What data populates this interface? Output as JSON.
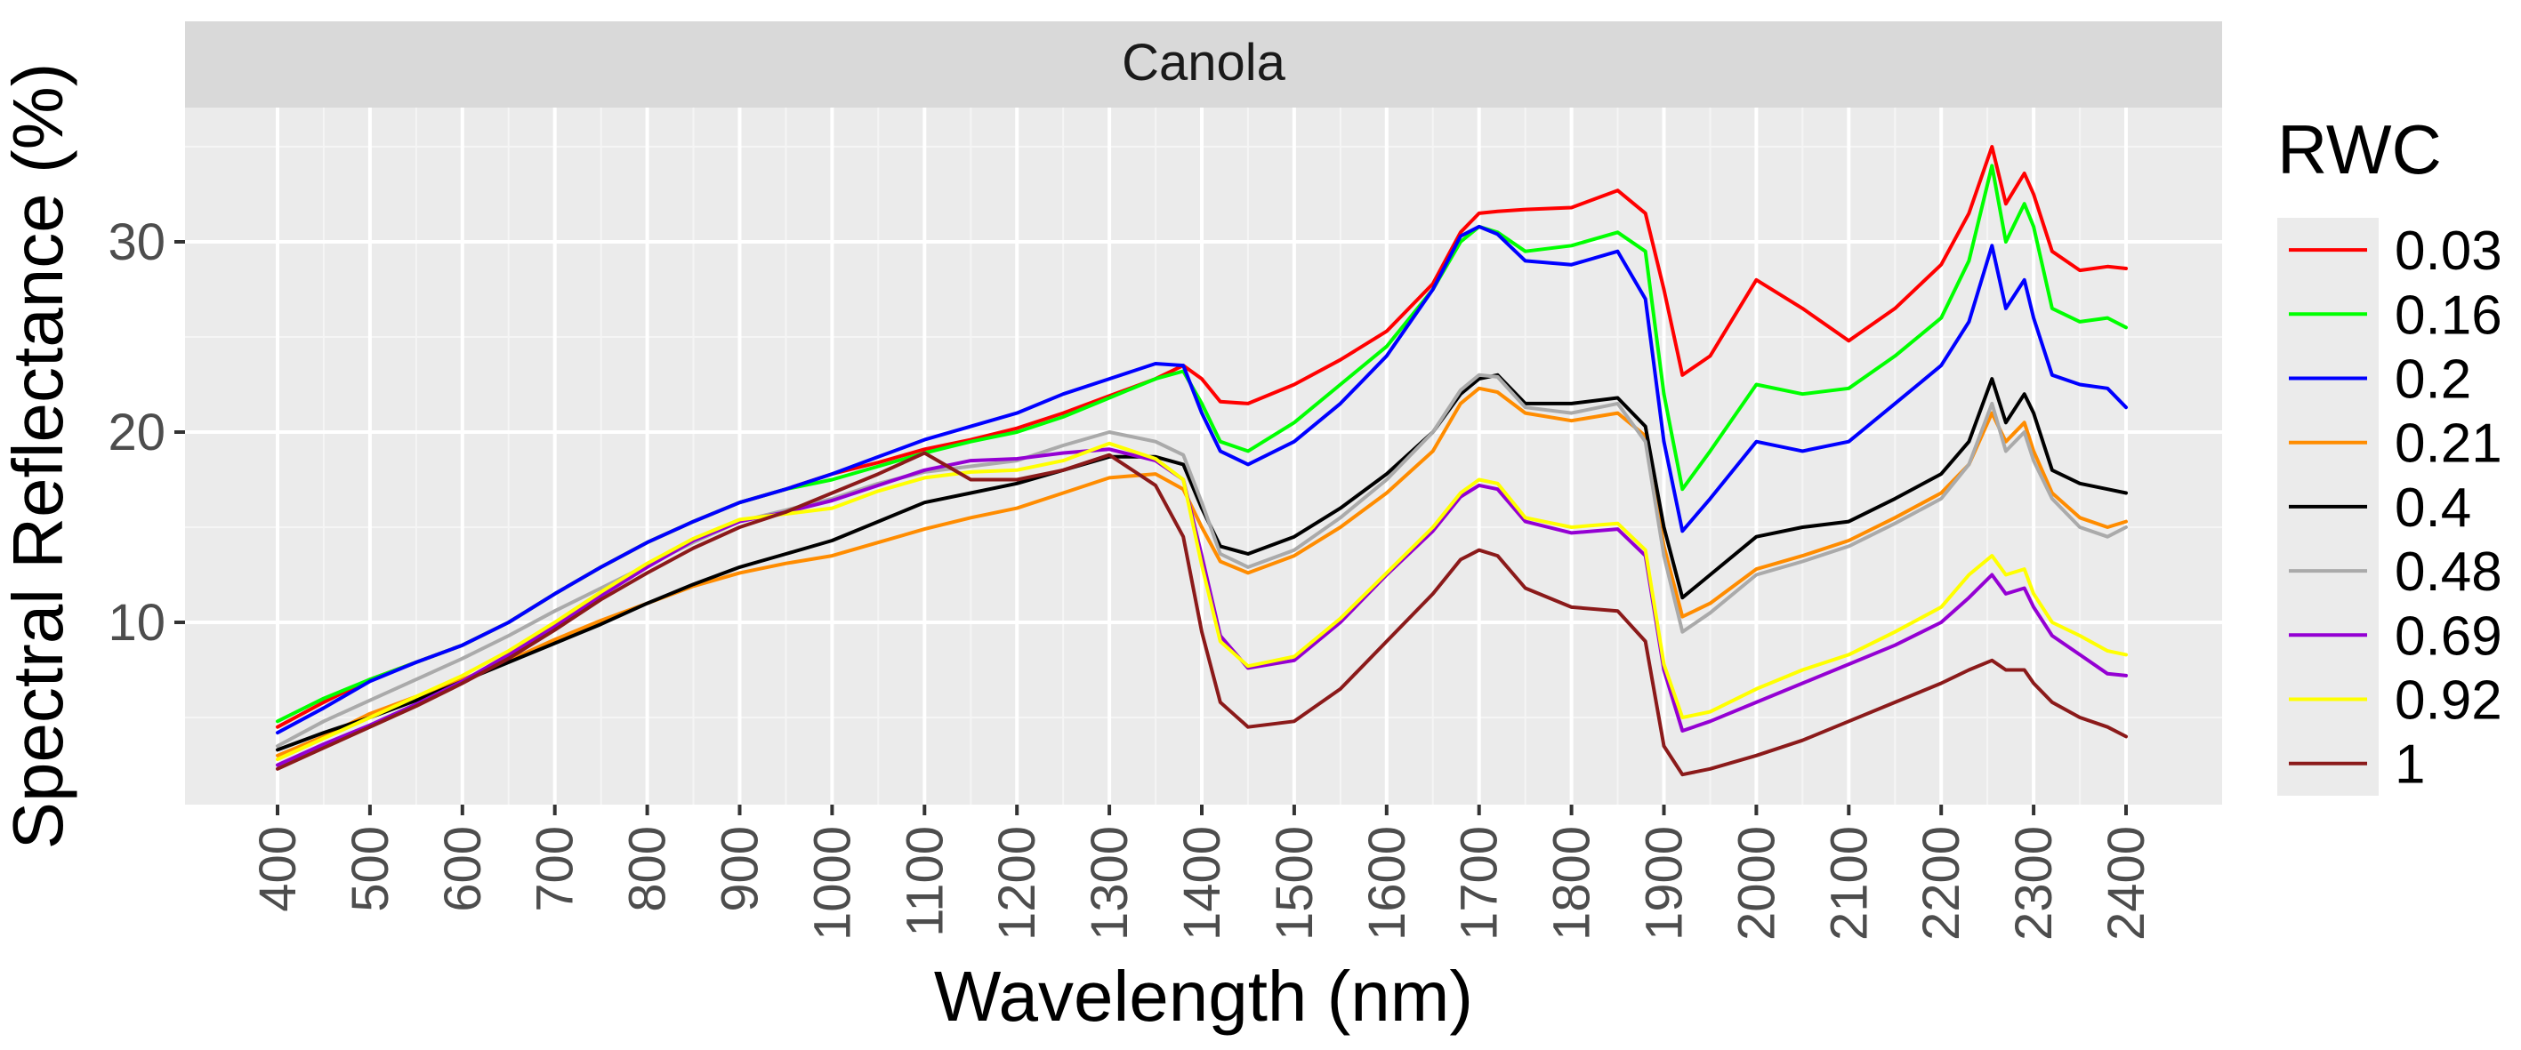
{
  "chart_data": {
    "type": "line",
    "facet_label": "Canola",
    "xlabel": "Wavelength (nm)",
    "ylabel": "Spectral Reflectance (%)",
    "xlim": [
      400,
      2400
    ],
    "ylim": [
      0,
      34
    ],
    "x_ticks": [
      400,
      500,
      600,
      700,
      800,
      900,
      1000,
      1100,
      1200,
      1300,
      1400,
      1500,
      1600,
      1700,
      1800,
      1900,
      2000,
      2100,
      2200,
      2300,
      2400
    ],
    "y_ticks": [
      10,
      20,
      30
    ],
    "grid": true,
    "legend": {
      "title": "RWC",
      "placement": "right"
    },
    "x": [
      400,
      450,
      500,
      550,
      600,
      650,
      700,
      750,
      800,
      850,
      900,
      950,
      1000,
      1050,
      1100,
      1150,
      1200,
      1250,
      1300,
      1350,
      1380,
      1400,
      1420,
      1450,
      1500,
      1550,
      1600,
      1650,
      1680,
      1700,
      1720,
      1750,
      1800,
      1850,
      1880,
      1900,
      1920,
      1950,
      2000,
      2050,
      2100,
      2150,
      2200,
      2230,
      2255,
      2270,
      2290,
      2300,
      2320,
      2350,
      2380,
      2400
    ],
    "series": [
      {
        "name": "0.03",
        "color": "#ff0000",
        "values": [
          4.5,
          5.8,
          7.0,
          7.9,
          8.8,
          10.0,
          11.5,
          12.9,
          14.2,
          15.3,
          16.3,
          17.0,
          17.8,
          18.4,
          19.1,
          19.6,
          20.2,
          21.0,
          21.9,
          22.8,
          23.5,
          22.8,
          21.6,
          21.5,
          22.5,
          23.8,
          25.3,
          27.8,
          30.5,
          31.5,
          31.6,
          31.7,
          31.8,
          32.7,
          31.5,
          27.5,
          23.0,
          24.0,
          28.0,
          26.5,
          24.8,
          26.5,
          28.8,
          31.5,
          35.0,
          32.0,
          33.6,
          32.5,
          29.5,
          28.5,
          28.7,
          28.6
        ]
      },
      {
        "name": "0.16",
        "color": "#00ff00",
        "values": [
          4.8,
          6.0,
          7.0,
          7.9,
          8.8,
          10.0,
          11.5,
          12.9,
          14.2,
          15.3,
          16.3,
          17.0,
          17.5,
          18.2,
          18.9,
          19.5,
          20.0,
          20.8,
          21.8,
          22.8,
          23.2,
          21.5,
          19.5,
          19.0,
          20.5,
          22.5,
          24.5,
          27.5,
          30.0,
          30.8,
          30.5,
          29.5,
          29.8,
          30.5,
          29.5,
          22.0,
          17.0,
          19.0,
          22.5,
          22.0,
          22.3,
          24.0,
          26.0,
          29.0,
          34.0,
          30.0,
          32.0,
          30.8,
          26.5,
          25.8,
          26.0,
          25.5
        ]
      },
      {
        "name": "0.2",
        "color": "#0000ff",
        "values": [
          4.2,
          5.5,
          6.9,
          7.9,
          8.8,
          10.0,
          11.5,
          12.9,
          14.2,
          15.3,
          16.3,
          17.0,
          17.8,
          18.7,
          19.6,
          20.3,
          21.0,
          22.0,
          22.8,
          23.6,
          23.5,
          21.0,
          19.0,
          18.3,
          19.5,
          21.5,
          24.0,
          27.5,
          30.3,
          30.8,
          30.4,
          29.0,
          28.8,
          29.5,
          27.0,
          19.5,
          14.8,
          16.5,
          19.5,
          19.0,
          19.5,
          21.5,
          23.5,
          25.8,
          29.8,
          26.5,
          28.0,
          26.0,
          23.0,
          22.5,
          22.3,
          21.3
        ]
      },
      {
        "name": "0.21",
        "color": "#ff8c00",
        "values": [
          3.0,
          4.0,
          5.2,
          6.1,
          7.0,
          8.0,
          9.1,
          10.1,
          11.0,
          11.9,
          12.6,
          13.1,
          13.5,
          14.2,
          14.9,
          15.5,
          16.0,
          16.8,
          17.6,
          17.8,
          17.0,
          15.0,
          13.2,
          12.6,
          13.5,
          15.0,
          16.8,
          19.0,
          21.5,
          22.3,
          22.1,
          21.0,
          20.6,
          21.0,
          19.8,
          14.0,
          10.3,
          11.0,
          12.8,
          13.5,
          14.3,
          15.5,
          16.8,
          18.3,
          21.0,
          19.5,
          20.5,
          19.0,
          16.8,
          15.5,
          15.0,
          15.3
        ]
      },
      {
        "name": "0.4",
        "color": "#000000",
        "values": [
          3.3,
          4.2,
          5.0,
          5.9,
          6.9,
          7.9,
          8.9,
          9.9,
          11.0,
          12.0,
          12.9,
          13.6,
          14.3,
          15.3,
          16.3,
          16.8,
          17.3,
          18.0,
          18.7,
          18.7,
          18.3,
          16.0,
          14.0,
          13.6,
          14.5,
          16.0,
          17.8,
          20.0,
          22.0,
          22.8,
          23.0,
          21.5,
          21.5,
          21.8,
          20.3,
          15.0,
          11.3,
          12.5,
          14.5,
          15.0,
          15.3,
          16.5,
          17.8,
          19.5,
          22.8,
          20.5,
          22.0,
          21.0,
          18.0,
          17.3,
          17.0,
          16.8
        ]
      },
      {
        "name": "0.48",
        "color": "#aaaaaa",
        "values": [
          3.5,
          4.8,
          5.9,
          7.0,
          8.1,
          9.3,
          10.6,
          11.8,
          13.0,
          14.2,
          15.3,
          15.9,
          16.5,
          17.3,
          17.9,
          18.2,
          18.5,
          19.3,
          20.0,
          19.5,
          18.8,
          16.3,
          13.6,
          12.9,
          13.8,
          15.5,
          17.5,
          20.0,
          22.2,
          23.0,
          22.9,
          21.3,
          21.0,
          21.5,
          19.5,
          13.5,
          9.5,
          10.5,
          12.5,
          13.2,
          14.0,
          15.2,
          16.5,
          18.3,
          21.5,
          19.0,
          20.0,
          18.5,
          16.5,
          15.0,
          14.5,
          15.0
        ]
      },
      {
        "name": "0.69",
        "color": "#9400d3",
        "values": [
          2.5,
          3.6,
          4.6,
          5.7,
          6.9,
          8.3,
          9.8,
          11.4,
          12.9,
          14.3,
          15.3,
          15.8,
          16.4,
          17.2,
          18.0,
          18.5,
          18.6,
          18.9,
          19.1,
          18.5,
          17.5,
          13.5,
          9.3,
          7.6,
          8.0,
          10.0,
          12.5,
          14.8,
          16.6,
          17.2,
          17.0,
          15.3,
          14.7,
          14.9,
          13.5,
          7.5,
          4.3,
          4.8,
          5.8,
          6.8,
          7.8,
          8.8,
          10.0,
          11.3,
          12.5,
          11.5,
          11.8,
          10.8,
          9.3,
          8.3,
          7.3,
          7.2
        ]
      },
      {
        "name": "0.92",
        "color": "#ffff00",
        "values": [
          2.8,
          3.9,
          5.0,
          6.1,
          7.2,
          8.5,
          10.0,
          11.6,
          13.1,
          14.4,
          15.4,
          15.7,
          16.0,
          16.9,
          17.6,
          17.9,
          18.0,
          18.5,
          19.4,
          18.6,
          17.5,
          13.0,
          9.0,
          7.7,
          8.2,
          10.2,
          12.6,
          15.0,
          16.8,
          17.5,
          17.3,
          15.5,
          15.0,
          15.2,
          13.8,
          7.8,
          5.0,
          5.3,
          6.5,
          7.5,
          8.3,
          9.5,
          10.8,
          12.5,
          13.5,
          12.5,
          12.8,
          11.5,
          10.0,
          9.3,
          8.5,
          8.3
        ]
      },
      {
        "name": "1",
        "color": "#8b1a1a",
        "values": [
          2.3,
          3.4,
          4.5,
          5.6,
          6.8,
          8.1,
          9.6,
          11.2,
          12.6,
          13.9,
          15.0,
          15.8,
          16.8,
          17.8,
          18.9,
          17.5,
          17.5,
          18.0,
          18.8,
          17.2,
          14.5,
          9.5,
          5.8,
          4.5,
          4.8,
          6.5,
          9.0,
          11.5,
          13.3,
          13.8,
          13.5,
          11.8,
          10.8,
          10.6,
          9.0,
          3.5,
          2.0,
          2.3,
          3.0,
          3.8,
          4.8,
          5.8,
          6.8,
          7.5,
          8.0,
          7.5,
          7.5,
          6.8,
          5.8,
          5.0,
          4.5,
          4.0
        ]
      }
    ]
  }
}
